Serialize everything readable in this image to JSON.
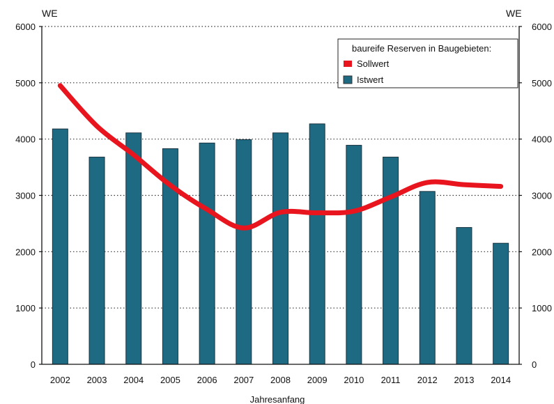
{
  "chart_data": {
    "type": "bar",
    "title": "",
    "xlabel": "Jahresanfang",
    "ylabel_left_unit": "WE",
    "ylabel_right_unit": "WE",
    "ylim": [
      0,
      6000
    ],
    "yticks": [
      0,
      1000,
      2000,
      3000,
      4000,
      5000,
      6000
    ],
    "right_yticks": [
      "0",
      "1000",
      "2000",
      "3000",
      "4000",
      "5000",
      "6000"
    ],
    "grid": "horizontal dotted",
    "legend": {
      "title": "baureife Reserven in Baugebieten:",
      "placement": "top-right",
      "entries": [
        {
          "label": "Sollwert",
          "color": "#e8141e",
          "kind": "line"
        },
        {
          "label": "Istwert",
          "color": "#1e6a82",
          "kind": "bar"
        }
      ]
    },
    "categories": [
      "2002",
      "2003",
      "2004",
      "2005",
      "2006",
      "2007",
      "2008",
      "2009",
      "2010",
      "2011",
      "2012",
      "2013",
      "2014"
    ],
    "series": [
      {
        "name": "Istwert",
        "kind": "bar",
        "color": "#1e6a82",
        "values": [
          4180,
          3680,
          4110,
          3830,
          3930,
          3990,
          4110,
          4270,
          3890,
          3680,
          3070,
          2430,
          2150
        ]
      },
      {
        "name": "Sollwert",
        "kind": "line",
        "color": "#e8141e",
        "values": [
          4950,
          4230,
          3720,
          3180,
          2750,
          2420,
          2700,
          2690,
          2720,
          2970,
          3230,
          3190,
          3160
        ]
      }
    ]
  }
}
